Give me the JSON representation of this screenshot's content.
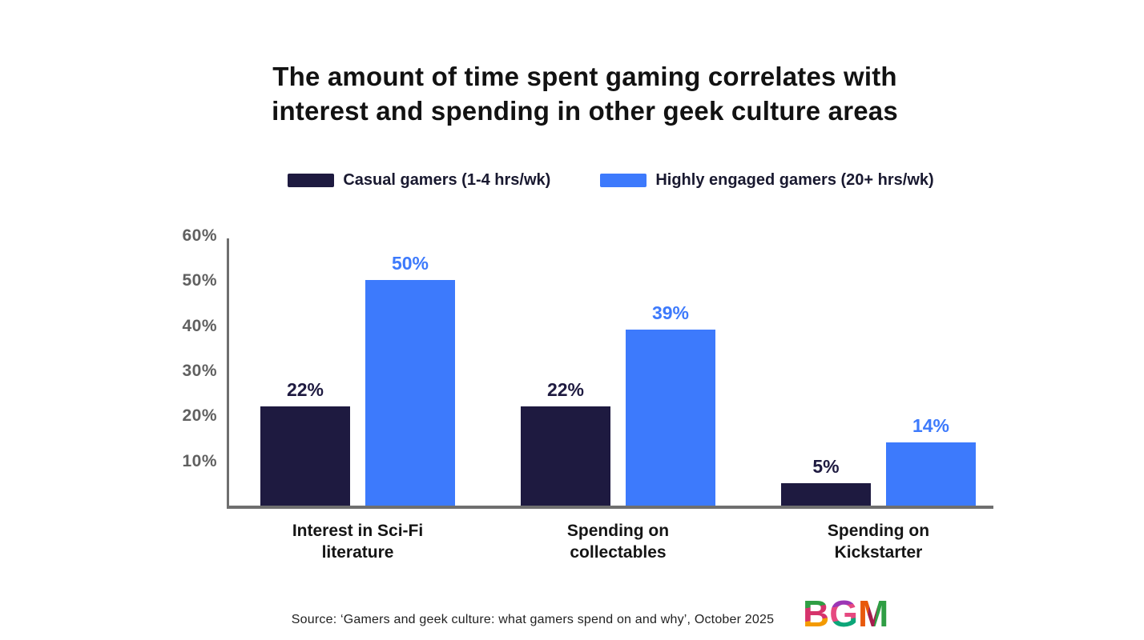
{
  "title": {
    "line1": "The amount of time spent gaming correlates with",
    "line2": "interest and spending in other geek culture areas"
  },
  "chart_data": {
    "type": "bar",
    "title": "The amount of time spent gaming correlates with interest and spending in other geek culture areas",
    "categories": [
      "Interest in Sci-Fi\nliterature",
      "Spending on\ncollectables",
      "Spending on\nKickstarter"
    ],
    "series": [
      {
        "name": "Casual gamers (1-4 hrs/wk)",
        "color": "#1e1a40",
        "values": [
          22,
          22,
          5
        ]
      },
      {
        "name": "Highly engaged gamers (20+ hrs/wk)",
        "color": "#3d7afc",
        "values": [
          50,
          39,
          14
        ]
      }
    ],
    "value_suffix": "%",
    "xlabel": "",
    "ylabel": "",
    "ylim": [
      0,
      60
    ],
    "yticks": [
      "10%",
      "20%",
      "30%",
      "40%",
      "50%",
      "60%"
    ],
    "grid": false,
    "legend_position": "top",
    "axis_color": "#6f6f6f",
    "tick_label_color": "#606060",
    "background_color": "#ffffff"
  },
  "source": "Source: ‘Gamers and geek culture: what gamers spend on and why’, October 2025",
  "logo": {
    "text": "BGM",
    "letters": [
      "B",
      "G",
      "M"
    ],
    "palette": [
      "#2f9e44",
      "#d6336c",
      "#f59f00",
      "#9c36b5",
      "#e64980",
      "#0ca678",
      "#e8590c",
      "#a61e4d"
    ]
  }
}
